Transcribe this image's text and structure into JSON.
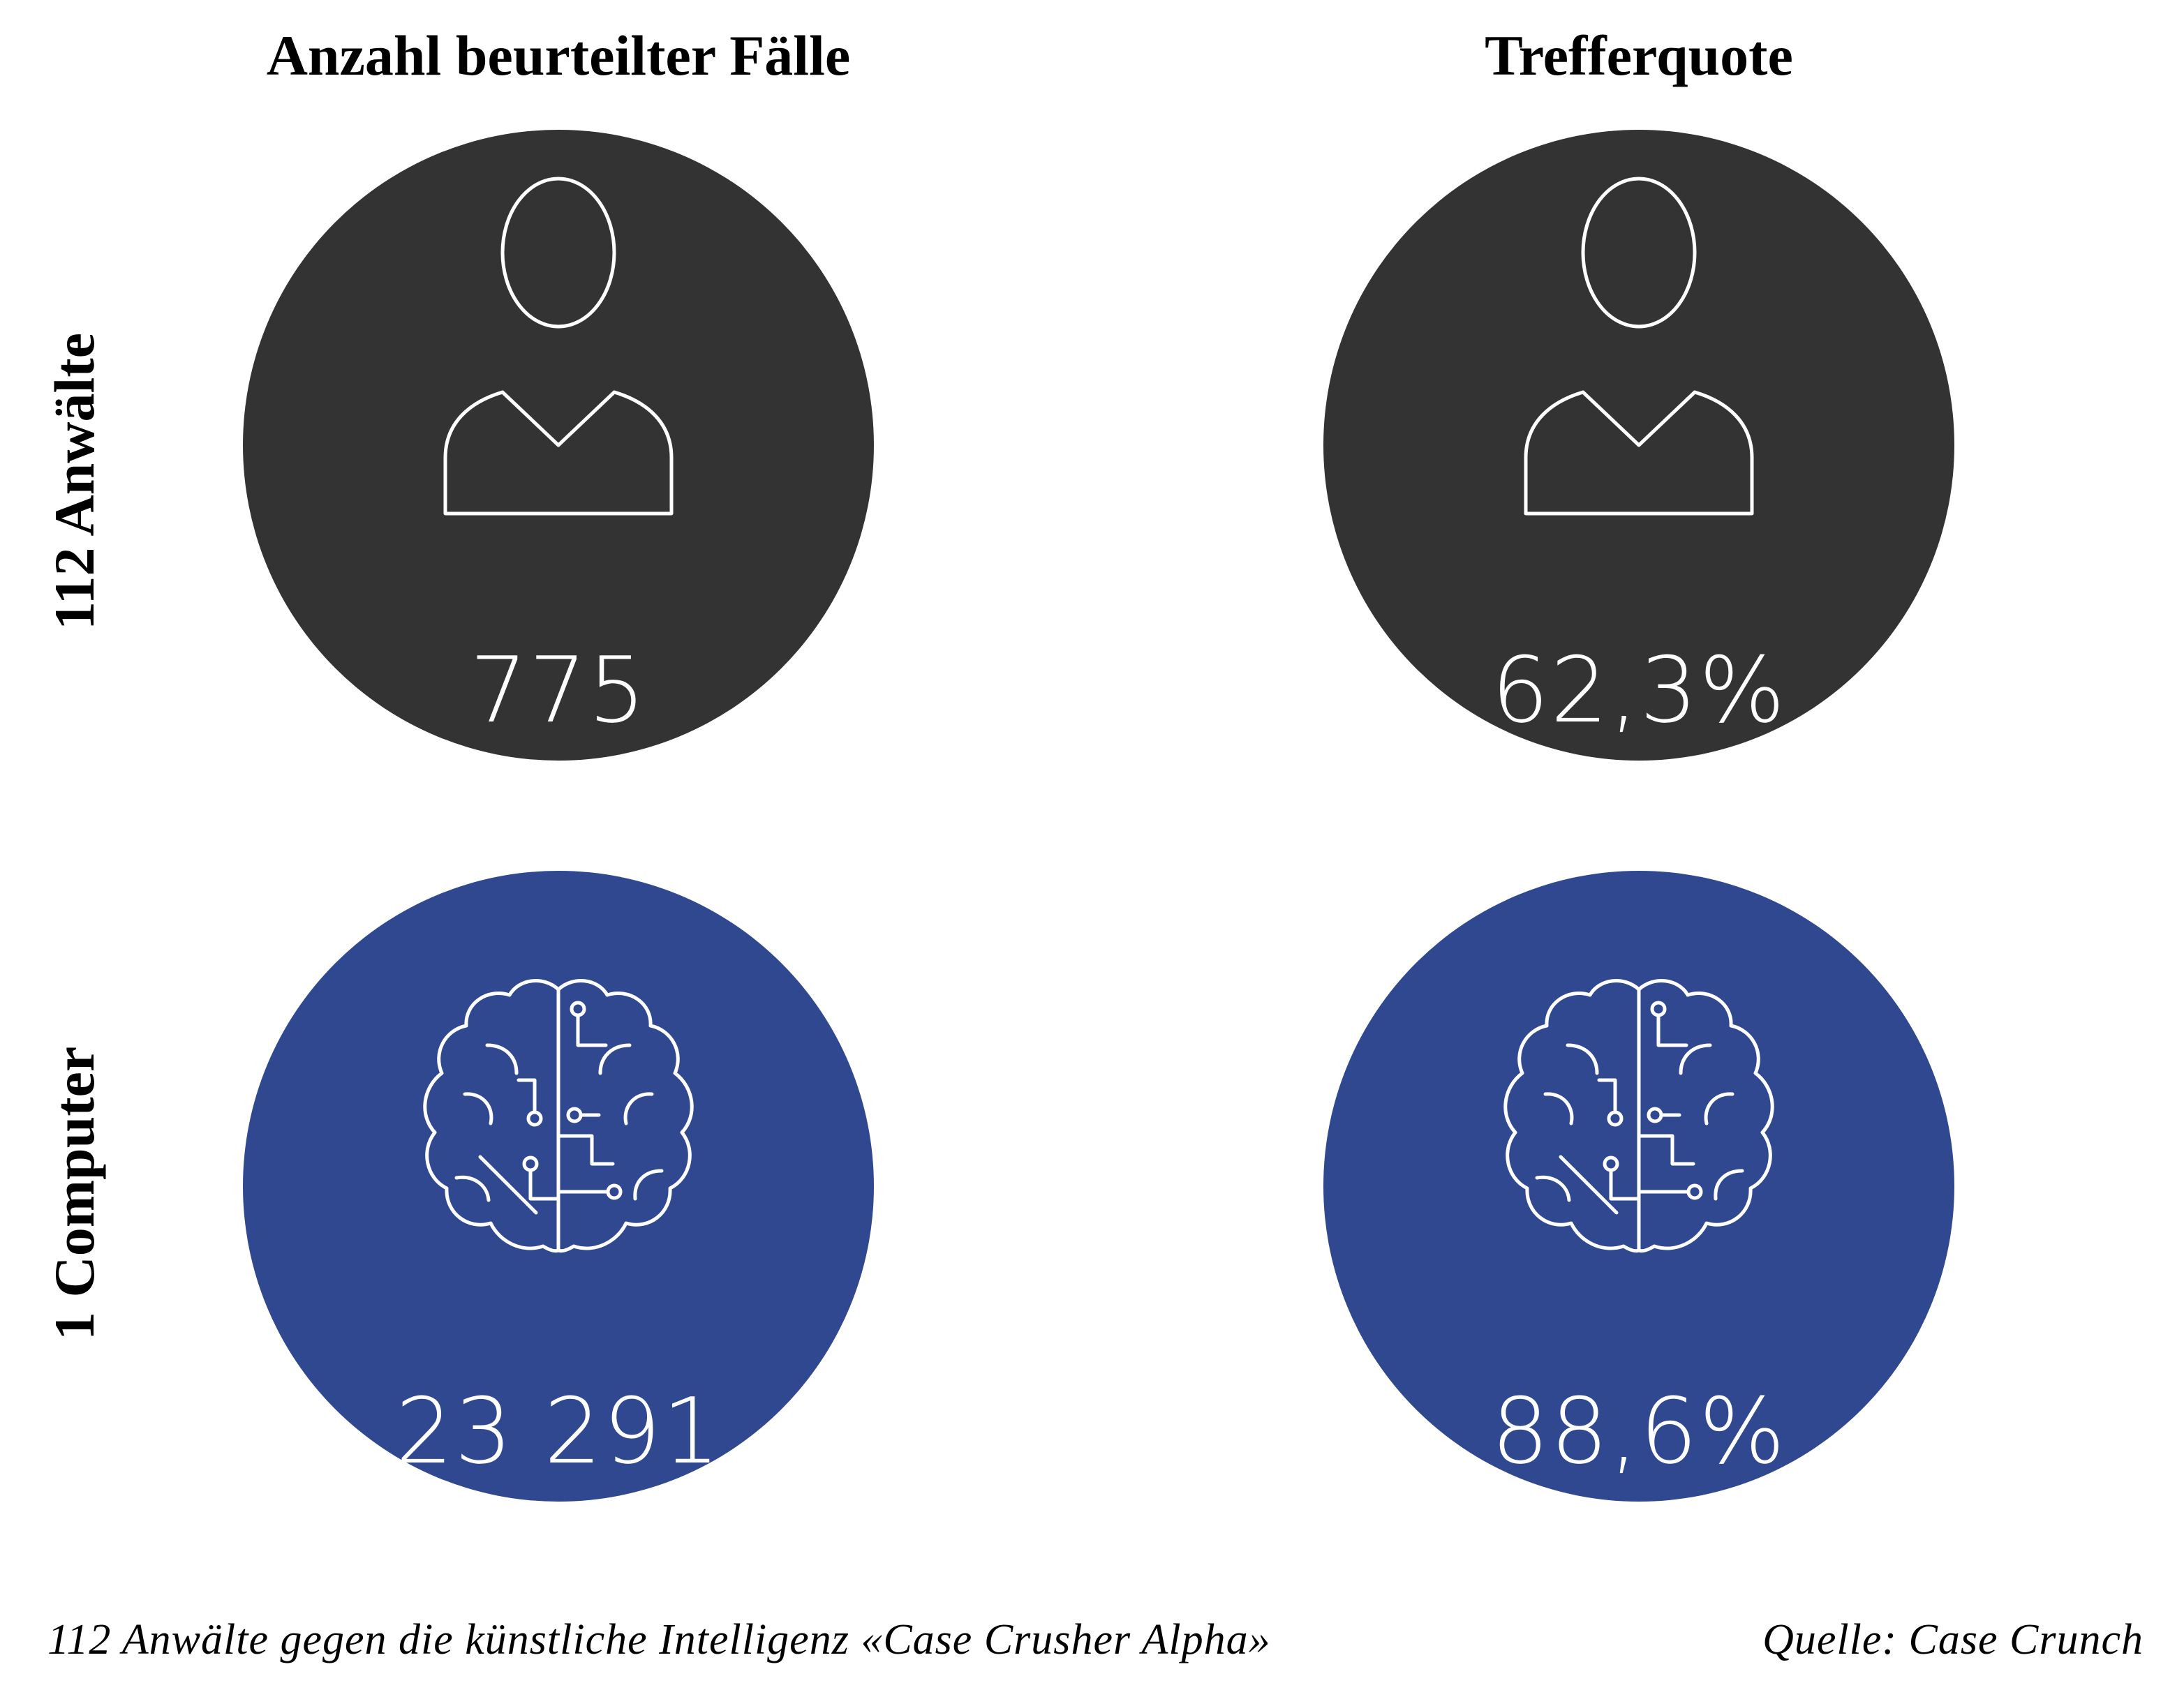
{
  "chart_data": {
    "type": "table",
    "columns": [
      "Anzahl beurteilter Fälle",
      "Trefferquote"
    ],
    "rows": [
      {
        "label": "112 Anwälte",
        "icon": "person-icon",
        "color": "#333333",
        "values": [
          "775",
          "62,3%"
        ]
      },
      {
        "label": "1 Computer",
        "icon": "brain-circuit-icon",
        "color": "#304890",
        "values": [
          "23 291",
          "88,6%"
        ]
      }
    ],
    "caption": "112 Anwälte gegen die künstliche Intelligenz «Case Crusher Alpha»",
    "source": "Quelle: Case Crunch"
  },
  "colors": {
    "background": "#ffffff",
    "human_circle": "#333333",
    "computer_circle": "#304890",
    "icon_stroke": "#ffffff"
  }
}
